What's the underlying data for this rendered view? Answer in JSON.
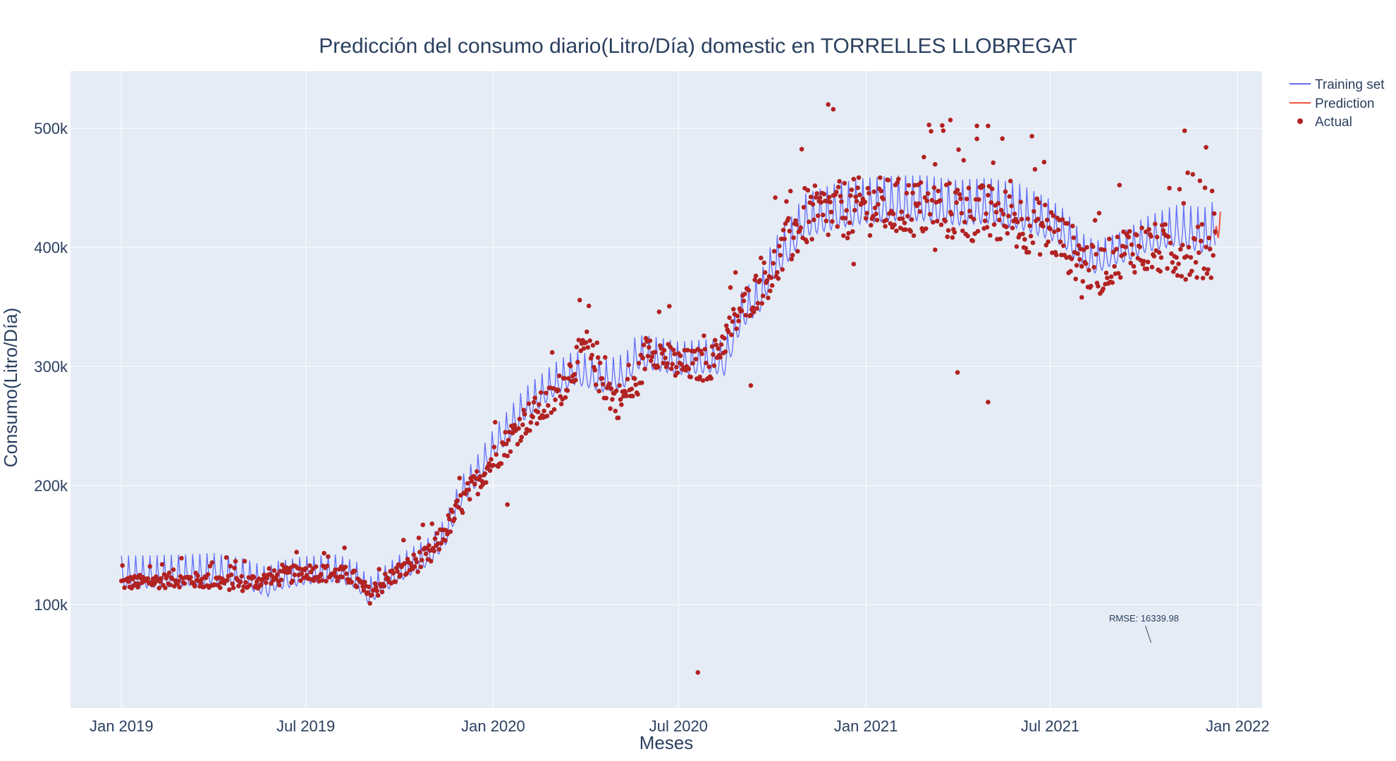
{
  "chart_data": {
    "type": "scatter",
    "title": "Predicción del consumo diario(Litro/Día) domestic en TORRELLES LLOBREGAT",
    "xlabel": "Meses",
    "ylabel": "Consumo(Litro/Día)",
    "xlim": [
      "2018-11-12",
      "2022-01-25"
    ],
    "ylim": [
      13000,
      548000
    ],
    "grid": true,
    "background": "#e5ecf6",
    "legend_position": "top-right, outside plot",
    "x_ticks": [
      {
        "date": "2019-01-01",
        "label": "Jan 2019"
      },
      {
        "date": "2019-07-01",
        "label": "Jul 2019"
      },
      {
        "date": "2020-01-01",
        "label": "Jan 2020"
      },
      {
        "date": "2020-07-01",
        "label": "Jul 2020"
      },
      {
        "date": "2021-01-01",
        "label": "Jan 2021"
      },
      {
        "date": "2021-07-01",
        "label": "Jul 2021"
      },
      {
        "date": "2022-01-01",
        "label": "Jan 2022"
      }
    ],
    "y_ticks": [
      {
        "value": 100000,
        "label": "100k"
      },
      {
        "value": 200000,
        "label": "200k"
      },
      {
        "value": 300000,
        "label": "300k"
      },
      {
        "value": 400000,
        "label": "400k"
      },
      {
        "value": 500000,
        "label": "500k"
      }
    ],
    "series": [
      {
        "name": "Training set",
        "kind": "line",
        "color": "#636efa",
        "weekly_pattern": "sharp weekly peaks above the base level",
        "base_level": [
          [
            "2019-01-01",
            120000
          ],
          [
            "2019-02-01",
            121000
          ],
          [
            "2019-03-01",
            122000
          ],
          [
            "2019-04-01",
            124000
          ],
          [
            "2019-05-01",
            120000
          ],
          [
            "2019-05-25",
            113000
          ],
          [
            "2019-06-01",
            118000
          ],
          [
            "2019-07-01",
            123000
          ],
          [
            "2019-08-01",
            125000
          ],
          [
            "2019-08-20",
            119000
          ],
          [
            "2019-09-01",
            106000
          ],
          [
            "2019-09-15",
            115000
          ],
          [
            "2019-10-01",
            125000
          ],
          [
            "2019-11-01",
            140000
          ],
          [
            "2019-11-15",
            155000
          ],
          [
            "2019-12-01",
            190000
          ],
          [
            "2019-12-15",
            205000
          ],
          [
            "2020-01-01",
            228000
          ],
          [
            "2020-02-01",
            262000
          ],
          [
            "2020-03-01",
            282000
          ],
          [
            "2020-03-20",
            292000
          ],
          [
            "2020-04-01",
            290000
          ],
          [
            "2020-04-20",
            285000
          ],
          [
            "2020-05-10",
            290000
          ],
          [
            "2020-05-20",
            305000
          ],
          [
            "2020-06-01",
            305000
          ],
          [
            "2020-07-01",
            300000
          ],
          [
            "2020-08-01",
            302000
          ],
          [
            "2020-08-15",
            300000
          ],
          [
            "2020-09-01",
            340000
          ],
          [
            "2020-09-20",
            355000
          ],
          [
            "2020-10-01",
            380000
          ],
          [
            "2020-10-20",
            400000
          ],
          [
            "2020-11-01",
            418000
          ],
          [
            "2020-12-01",
            425000
          ],
          [
            "2021-01-01",
            430000
          ],
          [
            "2021-02-01",
            432000
          ],
          [
            "2021-03-01",
            432000
          ],
          [
            "2021-04-01",
            428000
          ],
          [
            "2021-05-01",
            430000
          ],
          [
            "2021-06-01",
            425000
          ],
          [
            "2021-07-01",
            415000
          ],
          [
            "2021-07-15",
            408000
          ],
          [
            "2021-08-01",
            390000
          ],
          [
            "2021-08-15",
            385000
          ],
          [
            "2021-09-01",
            392000
          ],
          [
            "2021-09-15",
            395000
          ],
          [
            "2021-10-01",
            403000
          ],
          [
            "2021-11-01",
            410000
          ],
          [
            "2021-12-01",
            405000
          ],
          [
            "2021-12-10",
            410000
          ]
        ],
        "peak_amplitude": [
          [
            "2019-01-01",
            28000
          ],
          [
            "2019-09-01",
            22000
          ],
          [
            "2019-12-01",
            24000
          ],
          [
            "2020-03-01",
            28000
          ],
          [
            "2020-08-01",
            28000
          ],
          [
            "2020-12-01",
            38000
          ],
          [
            "2021-06-01",
            38000
          ],
          [
            "2021-09-01",
            25000
          ],
          [
            "2021-12-10",
            40000
          ]
        ]
      },
      {
        "name": "Prediction",
        "kind": "line",
        "color": "#ef553b",
        "points": [
          [
            "2021-12-10",
            410000
          ],
          [
            "2021-12-11",
            418000
          ],
          [
            "2021-12-12",
            412000
          ],
          [
            "2021-12-13",
            408000
          ],
          [
            "2021-12-14",
            415000
          ],
          [
            "2021-12-15",
            430000
          ]
        ]
      },
      {
        "name": "Actual",
        "kind": "markers",
        "color": "#b22222",
        "base_level": [
          [
            "2019-01-01",
            118000
          ],
          [
            "2019-03-01",
            121000
          ],
          [
            "2019-05-01",
            118000
          ],
          [
            "2019-06-01",
            122000
          ],
          [
            "2019-07-01",
            128000
          ],
          [
            "2019-08-15",
            124000
          ],
          [
            "2019-09-01",
            108000
          ],
          [
            "2019-09-15",
            118000
          ],
          [
            "2019-10-01",
            128000
          ],
          [
            "2019-11-01",
            142000
          ],
          [
            "2019-12-01",
            185000
          ],
          [
            "2020-01-01",
            222000
          ],
          [
            "2020-02-01",
            255000
          ],
          [
            "2020-03-01",
            272000
          ],
          [
            "2020-03-20",
            300000
          ],
          [
            "2020-04-01",
            318000
          ],
          [
            "2020-04-15",
            290000
          ],
          [
            "2020-05-01",
            270000
          ],
          [
            "2020-05-20",
            282000
          ],
          [
            "2020-06-01",
            318000
          ],
          [
            "2020-07-01",
            300000
          ],
          [
            "2020-08-01",
            302000
          ],
          [
            "2020-09-01",
            348000
          ],
          [
            "2020-10-01",
            380000
          ],
          [
            "2020-11-01",
            425000
          ],
          [
            "2021-01-01",
            435000
          ],
          [
            "2021-03-01",
            432000
          ],
          [
            "2021-05-01",
            428000
          ],
          [
            "2021-07-01",
            415000
          ],
          [
            "2021-08-15",
            378000
          ],
          [
            "2021-09-15",
            400000
          ],
          [
            "2021-12-10",
            395000
          ]
        ],
        "spread": [
          [
            "2019-01-01",
            6000
          ],
          [
            "2019-10-01",
            8000
          ],
          [
            "2020-01-01",
            12000
          ],
          [
            "2020-03-01",
            15000
          ],
          [
            "2020-09-01",
            14000
          ],
          [
            "2020-11-01",
            25000
          ],
          [
            "2021-06-01",
            25000
          ],
          [
            "2021-09-01",
            20000
          ],
          [
            "2021-12-10",
            25000
          ]
        ],
        "notable_points": [
          [
            "2020-07-20",
            43000
          ],
          [
            "2021-04-01",
            295000
          ],
          [
            "2021-05-01",
            270000
          ],
          [
            "2020-01-15",
            184000
          ],
          [
            "2020-11-25",
            520000
          ],
          [
            "2020-11-30",
            516000
          ],
          [
            "2021-03-25",
            507000
          ],
          [
            "2021-04-20",
            502000
          ],
          [
            "2021-05-01",
            502000
          ],
          [
            "2021-12-01",
            484000
          ],
          [
            "2021-11-10",
            498000
          ],
          [
            "2020-09-10",
            284000
          ],
          [
            "2021-08-01",
            358000
          ],
          [
            "2020-12-20",
            386000
          ],
          [
            "2021-03-10",
            398000
          ]
        ]
      }
    ],
    "annotation": {
      "text": "RMSE: 16339.98",
      "anchor_date": "2021-10-08",
      "anchor_value": 68000
    }
  }
}
